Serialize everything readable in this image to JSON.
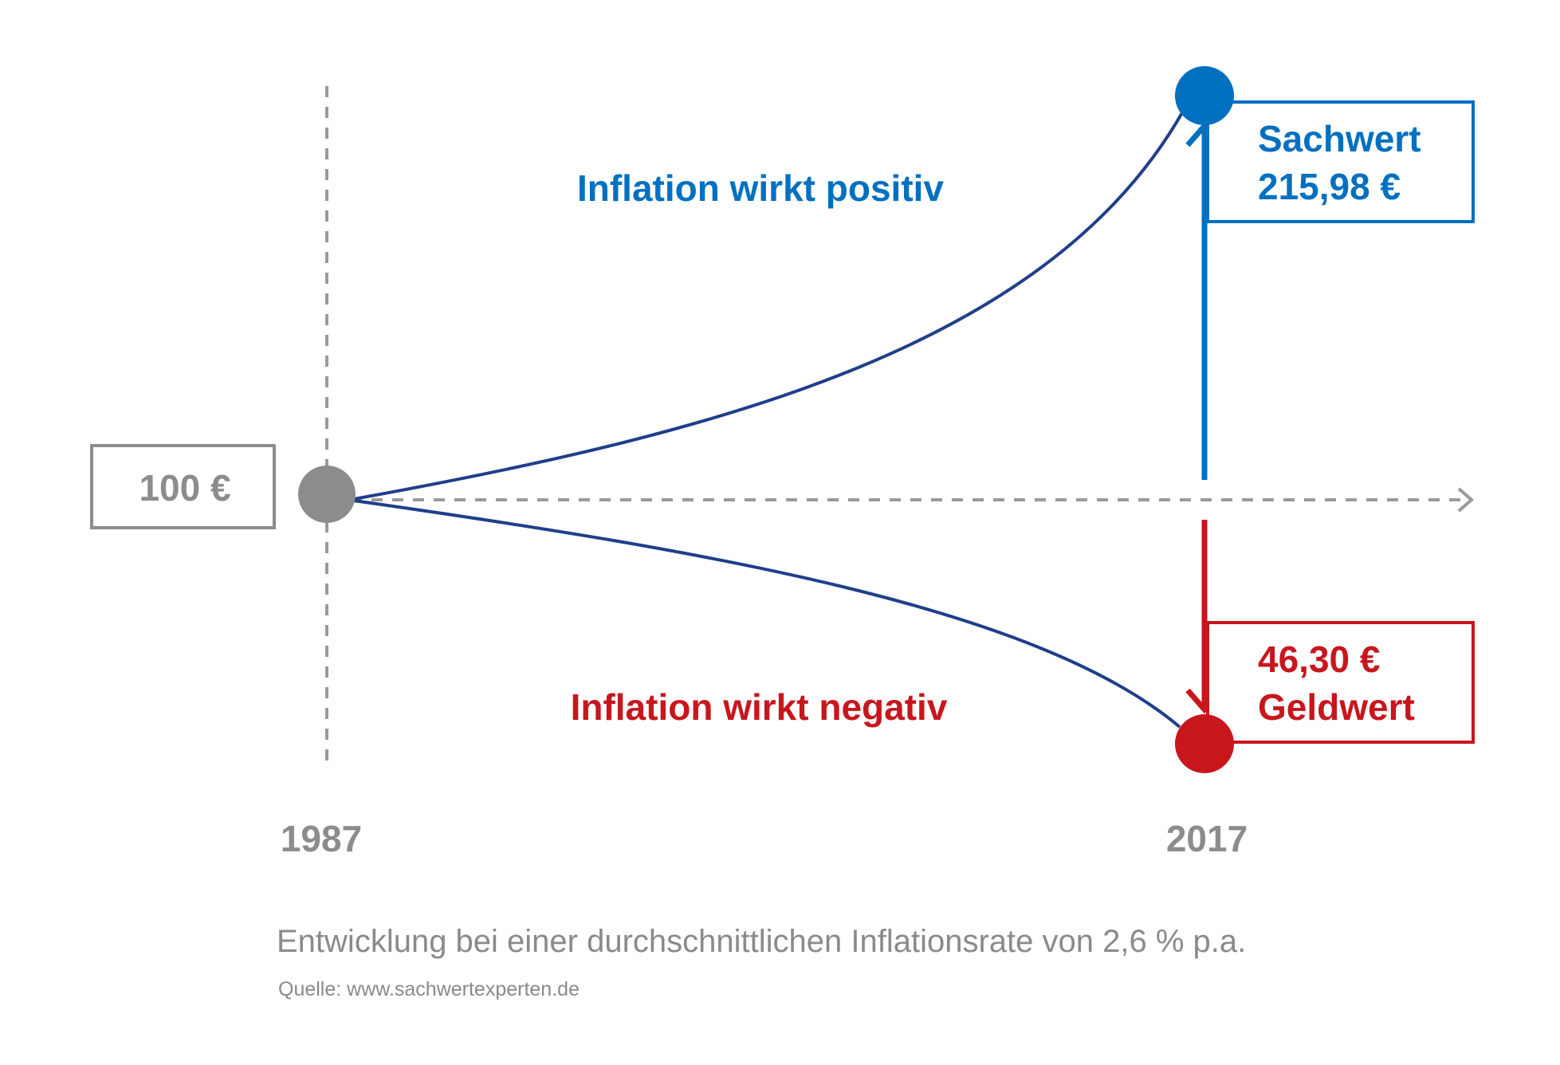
{
  "start_box": {
    "label": "100 €"
  },
  "start_year": "1987",
  "end_year": "2017",
  "positive_label": "Inflation wirkt positiv",
  "negative_label": "Inflation wirkt negativ",
  "sachwert_box": {
    "line1": "Sachwert",
    "line2": "215,98 €"
  },
  "geldwert_box": {
    "line1": "46,30 €",
    "line2": "Geldwert"
  },
  "caption": "Entwicklung bei einer durchschnittlichen Inflationsrate von 2,6 % p.a.",
  "source": "Quelle: www.sachwertexperten.de",
  "colors": {
    "blue": "#0070c0",
    "dark_blue_curve": "#1f3f8a",
    "red": "#c8161d",
    "gray": "#8c8c8c",
    "dash_gray": "#9a9a9a",
    "caption_gray": "#8a8a8a"
  }
}
